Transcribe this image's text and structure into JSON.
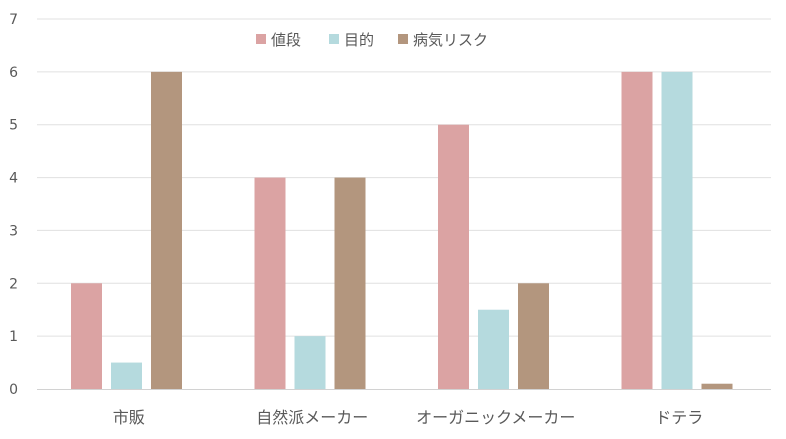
{
  "chart_data": {
    "type": "bar",
    "categories": [
      "市販",
      "自然派メーカー",
      "オーガニックメーカー",
      "ドテラ"
    ],
    "series": [
      {
        "name": "値段",
        "values": [
          2,
          4,
          5,
          6
        ],
        "color": "#DBA3A3"
      },
      {
        "name": "目的",
        "values": [
          0.5,
          1,
          1.5,
          6
        ],
        "color": "#B5DADE"
      },
      {
        "name": "病気リスク",
        "values": [
          6,
          4,
          2,
          0.1
        ],
        "color": "#B3967E"
      }
    ],
    "ylim": [
      0,
      7
    ],
    "yticks": [
      "0",
      "1",
      "2",
      "3",
      "4",
      "5",
      "6",
      "7"
    ],
    "grid": true,
    "legend_position": "top-center"
  },
  "colors": {
    "grid": "#E0E0E0",
    "axis": "#D2D2D2",
    "text": "#595959"
  }
}
